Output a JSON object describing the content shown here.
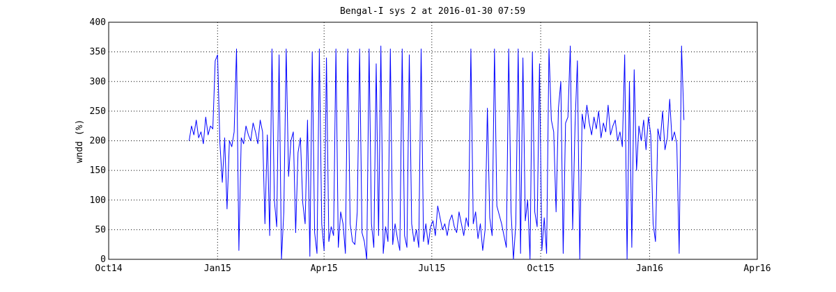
{
  "chart_data": {
    "type": "line",
    "title": "Bengal-I sys 2 at 2016-01-30 07:59",
    "ylabel": "wndd (%)",
    "xlim": [
      735873,
      736421
    ],
    "xticks": [
      {
        "value": 735873,
        "label": "Oct14"
      },
      {
        "value": 735965,
        "label": "Jan15"
      },
      {
        "value": 736055,
        "label": "Apr15"
      },
      {
        "value": 736146,
        "label": "Jul15"
      },
      {
        "value": 736238,
        "label": "Oct15"
      },
      {
        "value": 736330,
        "label": "Jan16"
      },
      {
        "value": 736421,
        "label": "Apr16"
      }
    ],
    "ylim": [
      0,
      400
    ],
    "yticks": [
      0,
      50,
      100,
      150,
      200,
      250,
      300,
      350,
      400
    ],
    "grid": true,
    "series": [
      {
        "color": "#0000ff",
        "x": [
          735941,
          735943,
          735945,
          735947,
          735949,
          735951,
          735953,
          735955,
          735957,
          735959,
          735961,
          735963,
          735965,
          735967,
          735969,
          735971,
          735973,
          735975,
          735977,
          735979,
          735981,
          735983,
          735985,
          735987,
          735989,
          735991,
          735993,
          735995,
          735997,
          735999,
          736001,
          736003,
          736005,
          736007,
          736009,
          736011,
          736013,
          736015,
          736017,
          736019,
          736021,
          736023,
          736025,
          736027,
          736029,
          736031,
          736033,
          736035,
          736037,
          736039,
          736041,
          736043,
          736045,
          736047,
          736049,
          736051,
          736053,
          736055,
          736057,
          736059,
          736061,
          736063,
          736065,
          736067,
          736069,
          736071,
          736073,
          736075,
          736077,
          736079,
          736081,
          736083,
          736085,
          736087,
          736089,
          736091,
          736093,
          736095,
          736097,
          736099,
          736101,
          736103,
          736105,
          736107,
          736109,
          736111,
          736113,
          736115,
          736117,
          736119,
          736121,
          736123,
          736125,
          736127,
          736129,
          736131,
          736133,
          736135,
          736137,
          736139,
          736141,
          736143,
          736145,
          736147,
          736149,
          736151,
          736153,
          736155,
          736157,
          736159,
          736161,
          736163,
          736165,
          736167,
          736169,
          736171,
          736173,
          736175,
          736177,
          736179,
          736181,
          736183,
          736185,
          736187,
          736189,
          736191,
          736193,
          736195,
          736197,
          736199,
          736201,
          736203,
          736205,
          736207,
          736209,
          736211,
          736213,
          736215,
          736217,
          736219,
          736221,
          736223,
          736225,
          736227,
          736229,
          736231,
          736233,
          736235,
          736237,
          736239,
          736241,
          736243,
          736245,
          736247,
          736249,
          736251,
          736253,
          736255,
          736257,
          736259,
          736261,
          736263,
          736265,
          736267,
          736269,
          736271,
          736273,
          736275,
          736277,
          736279,
          736281,
          736283,
          736285,
          736287,
          736289,
          736291,
          736293,
          736295,
          736297,
          736299,
          736301,
          736303,
          736305,
          736307,
          736309,
          736311,
          736313,
          736315,
          736317,
          736319,
          736321,
          736323,
          736325,
          736327,
          736329,
          736331,
          736333,
          736335,
          736337,
          736339,
          736341,
          736343,
          736345,
          736347,
          736349,
          736351,
          736353,
          736355,
          736357,
          736359
        ],
        "values": [
          200,
          225,
          210,
          235,
          205,
          215,
          195,
          240,
          210,
          225,
          220,
          335,
          345,
          195,
          130,
          205,
          85,
          200,
          190,
          215,
          355,
          15,
          205,
          195,
          225,
          210,
          200,
          230,
          215,
          195,
          235,
          215,
          60,
          210,
          40,
          355,
          100,
          55,
          345,
          0,
          80,
          355,
          140,
          200,
          215,
          45,
          180,
          205,
          95,
          60,
          235,
          5,
          350,
          45,
          10,
          355,
          60,
          15,
          340,
          30,
          55,
          40,
          355,
          20,
          80,
          60,
          10,
          355,
          60,
          30,
          25,
          80,
          355,
          45,
          30,
          0,
          355,
          60,
          20,
          330,
          40,
          360,
          10,
          55,
          30,
          355,
          25,
          60,
          35,
          15,
          355,
          40,
          20,
          345,
          60,
          30,
          50,
          20,
          355,
          30,
          60,
          25,
          55,
          65,
          40,
          90,
          70,
          50,
          60,
          40,
          65,
          75,
          55,
          45,
          80,
          60,
          40,
          70,
          55,
          355,
          60,
          80,
          35,
          60,
          15,
          50,
          255,
          70,
          40,
          355,
          90,
          75,
          60,
          40,
          20,
          355,
          80,
          0,
          60,
          355,
          10,
          340,
          65,
          100,
          0,
          350,
          80,
          55,
          330,
          15,
          70,
          10,
          355,
          235,
          215,
          80,
          255,
          300,
          10,
          230,
          240,
          360,
          50,
          225,
          335,
          0,
          245,
          220,
          260,
          230,
          210,
          240,
          220,
          250,
          205,
          230,
          215,
          260,
          210,
          225,
          235,
          200,
          215,
          190,
          345,
          0,
          300,
          20,
          320,
          150,
          225,
          200,
          235,
          185,
          240,
          210,
          60,
          30,
          220,
          200,
          250,
          185,
          205,
          270,
          200,
          215,
          195,
          10,
          360,
          235
        ]
      }
    ]
  }
}
